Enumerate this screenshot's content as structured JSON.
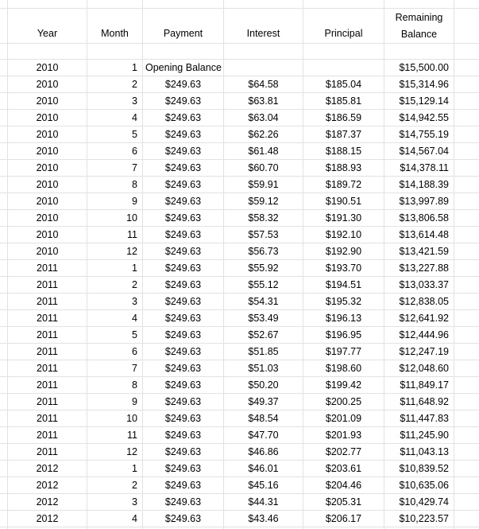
{
  "headers": {
    "year": "Year",
    "month": "Month",
    "payment": "Payment",
    "interest": "Interest",
    "principal": "Principal",
    "remaining_line1": "Remaining",
    "remaining_line2": "Balance"
  },
  "opening": {
    "year": "2010",
    "month": "1",
    "label": "Opening Balance",
    "balance": "$15,500.00"
  },
  "rows": [
    [
      "2010",
      "2",
      "$249.63",
      "$64.58",
      "$185.04",
      "$15,314.96"
    ],
    [
      "2010",
      "3",
      "$249.63",
      "$63.81",
      "$185.81",
      "$15,129.14"
    ],
    [
      "2010",
      "4",
      "$249.63",
      "$63.04",
      "$186.59",
      "$14,942.55"
    ],
    [
      "2010",
      "5",
      "$249.63",
      "$62.26",
      "$187.37",
      "$14,755.19"
    ],
    [
      "2010",
      "6",
      "$249.63",
      "$61.48",
      "$188.15",
      "$14,567.04"
    ],
    [
      "2010",
      "7",
      "$249.63",
      "$60.70",
      "$188.93",
      "$14,378.11"
    ],
    [
      "2010",
      "8",
      "$249.63",
      "$59.91",
      "$189.72",
      "$14,188.39"
    ],
    [
      "2010",
      "9",
      "$249.63",
      "$59.12",
      "$190.51",
      "$13,997.89"
    ],
    [
      "2010",
      "10",
      "$249.63",
      "$58.32",
      "$191.30",
      "$13,806.58"
    ],
    [
      "2010",
      "11",
      "$249.63",
      "$57.53",
      "$192.10",
      "$13,614.48"
    ],
    [
      "2010",
      "12",
      "$249.63",
      "$56.73",
      "$192.90",
      "$13,421.59"
    ],
    [
      "2011",
      "1",
      "$249.63",
      "$55.92",
      "$193.70",
      "$13,227.88"
    ],
    [
      "2011",
      "2",
      "$249.63",
      "$55.12",
      "$194.51",
      "$13,033.37"
    ],
    [
      "2011",
      "3",
      "$249.63",
      "$54.31",
      "$195.32",
      "$12,838.05"
    ],
    [
      "2011",
      "4",
      "$249.63",
      "$53.49",
      "$196.13",
      "$12,641.92"
    ],
    [
      "2011",
      "5",
      "$249.63",
      "$52.67",
      "$196.95",
      "$12,444.96"
    ],
    [
      "2011",
      "6",
      "$249.63",
      "$51.85",
      "$197.77",
      "$12,247.19"
    ],
    [
      "2011",
      "7",
      "$249.63",
      "$51.03",
      "$198.60",
      "$12,048.60"
    ],
    [
      "2011",
      "8",
      "$249.63",
      "$50.20",
      "$199.42",
      "$11,849.17"
    ],
    [
      "2011",
      "9",
      "$249.63",
      "$49.37",
      "$200.25",
      "$11,648.92"
    ],
    [
      "2011",
      "10",
      "$249.63",
      "$48.54",
      "$201.09",
      "$11,447.83"
    ],
    [
      "2011",
      "11",
      "$249.63",
      "$47.70",
      "$201.93",
      "$11,245.90"
    ],
    [
      "2011",
      "12",
      "$249.63",
      "$46.86",
      "$202.77",
      "$11,043.13"
    ],
    [
      "2012",
      "1",
      "$249.63",
      "$46.01",
      "$203.61",
      "$10,839.52"
    ],
    [
      "2012",
      "2",
      "$249.63",
      "$45.16",
      "$204.46",
      "$10,635.06"
    ],
    [
      "2012",
      "3",
      "$249.63",
      "$44.31",
      "$205.31",
      "$10,429.74"
    ],
    [
      "2012",
      "4",
      "$249.63",
      "$43.46",
      "$206.17",
      "$10,223.57"
    ]
  ]
}
